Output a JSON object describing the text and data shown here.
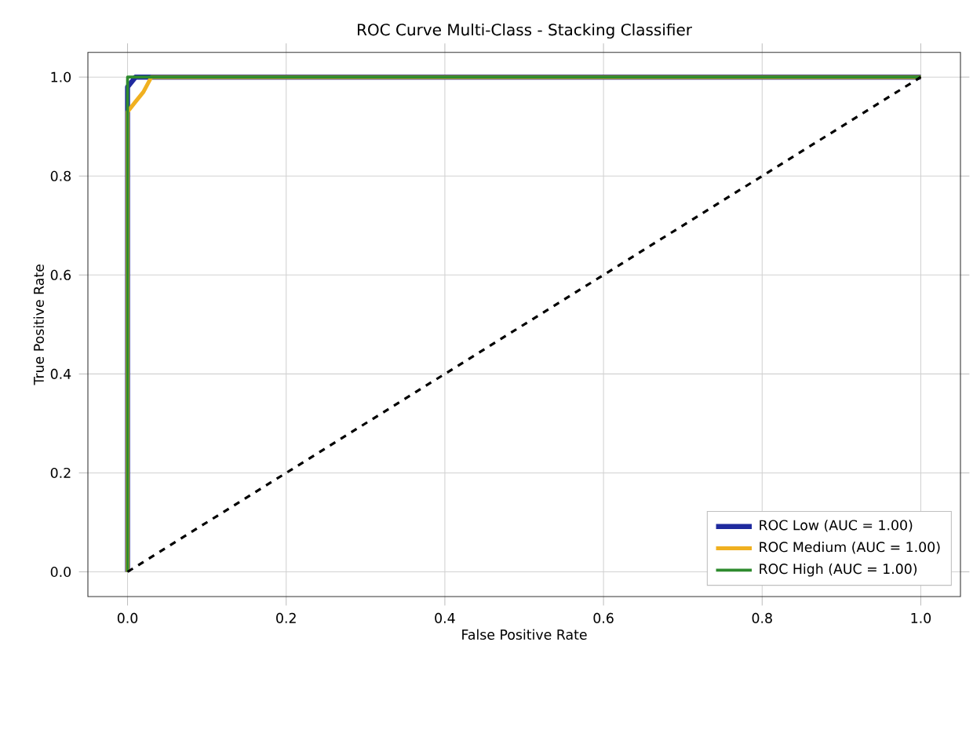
{
  "chart_data": {
    "type": "line",
    "title": "ROC Curve Multi-Class - Stacking Classifier",
    "xlabel": "False Positive Rate",
    "ylabel": "True Positive Rate",
    "xlim": [
      -0.05,
      1.05
    ],
    "ylim": [
      -0.05,
      1.05
    ],
    "xticks": [
      {
        "value": 0,
        "label": "0.0"
      },
      {
        "value": 0.2,
        "label": "0.2"
      },
      {
        "value": 0.4,
        "label": "0.4"
      },
      {
        "value": 0.6,
        "label": "0.6"
      },
      {
        "value": 0.8,
        "label": "0.8"
      },
      {
        "value": 1,
        "label": "1.0"
      }
    ],
    "yticks": [
      {
        "value": 0,
        "label": "0.0"
      },
      {
        "value": 0.2,
        "label": "0.2"
      },
      {
        "value": 0.4,
        "label": "0.4"
      },
      {
        "value": 0.6,
        "label": "0.6"
      },
      {
        "value": 0.8,
        "label": "0.8"
      },
      {
        "value": 1,
        "label": "1.0"
      }
    ],
    "grid": true,
    "legend": "bottom right",
    "series": [
      {
        "name": "ROC Low    (AUC = 1.00)",
        "color": "#1f2a9e",
        "x": [
          0,
          0,
          0.005,
          0.01,
          1
        ],
        "values": [
          0,
          0.98,
          0.99,
          1,
          1
        ]
      },
      {
        "name": "ROC Medium (AUC = 1.00)",
        "color": "#f0b020",
        "x": [
          0,
          0,
          0.01,
          0.02,
          0.03,
          1
        ],
        "values": [
          0,
          0.93,
          0.95,
          0.97,
          1,
          1
        ]
      },
      {
        "name": "ROC High    (AUC = 1.00)",
        "color": "#2e8b2e",
        "x": [
          0,
          0,
          1
        ],
        "values": [
          0,
          1,
          1
        ]
      },
      {
        "color": "#000000",
        "line_style": "dashed",
        "x": [
          0,
          1
        ],
        "values": [
          0,
          1
        ]
      }
    ]
  }
}
